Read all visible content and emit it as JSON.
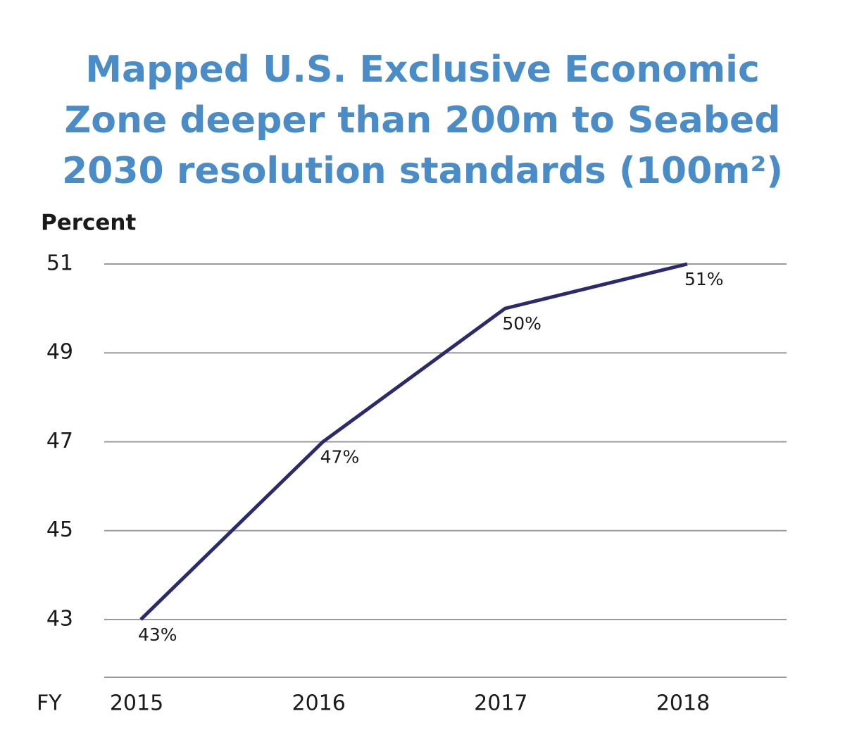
{
  "chart_data": {
    "type": "line",
    "title": [
      "Mapped U.S. Exclusive Economic",
      "Zone deeper than 200m to Seabed",
      "2030 resolution standards (100m²)"
    ],
    "y_label": "Percent",
    "x_label": "FY",
    "categories": [
      "2015",
      "2016",
      "2017",
      "2018"
    ],
    "values": [
      43,
      47,
      50,
      51
    ],
    "value_labels": [
      "43%",
      "47%",
      "50%",
      "51%"
    ],
    "color": "#2b2a6e",
    "ylim": [
      41.7,
      51
    ],
    "yticks": [
      43,
      45,
      47,
      49,
      51
    ],
    "grid": true
  }
}
